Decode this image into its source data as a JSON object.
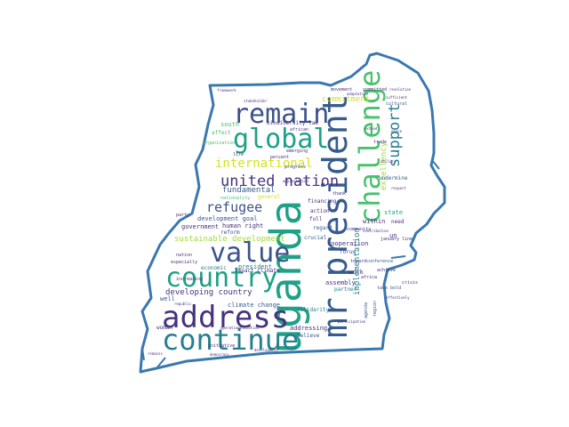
{
  "wordcloud": {
    "palette": {
      "dark_purple": "#46327e",
      "indigo": "#3b528b",
      "blue": "#365c8d",
      "teal": "#277f8e",
      "green_teal": "#1fa187",
      "green": "#4ac16d",
      "light_green": "#a0da39",
      "yellow": "#d7e219",
      "outline": "#3a78b0"
    },
    "words": {
      "uganda": "uganda",
      "mr_president": "mr president",
      "challenge": "challenge",
      "address": "address",
      "continue": "continue",
      "remain": "remain",
      "global": "global",
      "value": "value",
      "country": "country",
      "united_nation": "united nation",
      "international": "international",
      "support": "support",
      "refugee": "refugee",
      "fundamental": "fundamental",
      "sustainable_development": "sustainable development",
      "developing_country": "developing country",
      "implementation": "implementation",
      "excellency": "excellency",
      "commitment": "commitment",
      "cooperation": "cooperation",
      "climate_change": "climate change",
      "development_goal": "development goal",
      "government": "government",
      "human_right": "human right",
      "reform": "reform",
      "president": "president",
      "economic": "economic",
      "assembly": "assembly",
      "partner": "partner",
      "work": "work",
      "within": "within",
      "state": "state",
      "undermine": "undermine",
      "addressing": "addressing",
      "believe": "believe",
      "solidarity": "solidarity",
      "crucial": "crucial",
      "regard": "regard",
      "action": "action",
      "full": "full",
      "financing": "financing",
      "forum": "forum",
      "conference": "conference",
      "community": "community",
      "africa": "africa",
      "south": "south",
      "african": "african",
      "biodiversity_law": "biodiversity law",
      "progress": "progress",
      "emerging": "emerging",
      "percent": "percent",
      "life": "life",
      "general": "general",
      "nationality": "nationality",
      "party": "party",
      "nation": "nation",
      "well": "well",
      "woman": "woman",
      "initiative": "initiative",
      "impact_climate": "impact climate",
      "movement": "movement",
      "committed": "committed",
      "cultural": "cultural",
      "trade": "trade",
      "need": "need",
      "january": "january",
      "un": "un",
      "line": "line",
      "crisis": "crisis",
      "region": "region",
      "agenda": "agenda",
      "thank": "thank",
      "take_bold": "take bold",
      "achieve": "achieve",
      "toward": "toward",
      "especially": "especially",
      "increasing": "increasing",
      "affect": "affect",
      "organization": "organization",
      "framework": "framework",
      "resolution": "resolution",
      "adaptation": "adaptation",
      "stakeholder": "stakeholder",
      "sufficient": "sufficient",
      "ability": "ability",
      "respect": "respect",
      "contribution": "contribution",
      "extend": "extend",
      "peace": "peace",
      "appreciation": "appreciation",
      "republic": "republic",
      "remains": "remains",
      "participation": "participation",
      "democracy": "democracy",
      "operationalization": "operationalization",
      "development": "development",
      "effectively": "effectively"
    }
  }
}
